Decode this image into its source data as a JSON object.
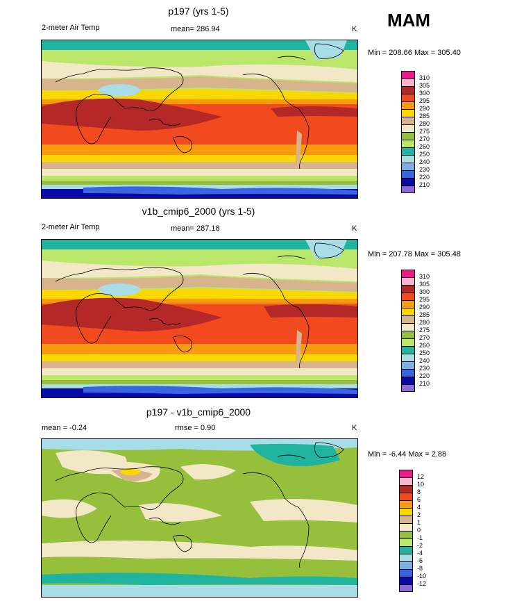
{
  "season": "MAM",
  "panels": [
    {
      "title": "p197 (yrs 1-5)",
      "variable": "2-meter Air Temp",
      "mean": "mean= 286.94",
      "unit": "K",
      "range": "Min = 208.66 Max = 305.40",
      "colorbar": {
        "labels": [
          "310",
          "305",
          "300",
          "295",
          "290",
          "285",
          "280",
          "275",
          "270",
          "260",
          "250",
          "240",
          "230",
          "220",
          "210"
        ],
        "colors": [
          "#f0188c",
          "#f4b6c8",
          "#b42828",
          "#f04a1e",
          "#f89a10",
          "#f8d800",
          "#d8b48c",
          "#f2e8c8",
          "#96c03c",
          "#bae66a",
          "#20b4a0",
          "#a8dce6",
          "#7ab0e6",
          "#3a64e0",
          "#0a0aa8",
          "#8c6ad8"
        ]
      },
      "map_palette": {
        "polar": "#3a64e0",
        "cold": "#a8dce6",
        "cool": "#bae66a",
        "mild": "#f2e8c8",
        "warm": "#f89a10",
        "hot": "#f04a1e",
        "hottest": "#b42828",
        "ocean_mid": "#f8d800",
        "tan": "#d8b48c",
        "green": "#96c03c",
        "teal": "#20b4a0",
        "navy": "#0a0aa8"
      }
    },
    {
      "title": "v1b_cmip6_2000 (yrs 1-5)",
      "variable": "2-meter Air Temp",
      "mean": "mean= 287.18",
      "unit": "K",
      "range": "Min = 207.78 Max = 305.48",
      "colorbar": {
        "labels": [
          "310",
          "305",
          "300",
          "295",
          "290",
          "285",
          "280",
          "275",
          "270",
          "260",
          "250",
          "240",
          "230",
          "220",
          "210"
        ],
        "colors": [
          "#f0188c",
          "#f4b6c8",
          "#b42828",
          "#f04a1e",
          "#f89a10",
          "#f8d800",
          "#d8b48c",
          "#f2e8c8",
          "#96c03c",
          "#bae66a",
          "#20b4a0",
          "#a8dce6",
          "#7ab0e6",
          "#3a64e0",
          "#0a0aa8",
          "#8c6ad8"
        ]
      }
    },
    {
      "title": "p197 - v1b_cmip6_2000",
      "mean": "mean =  -0.24",
      "rmse": "rmse =   0.90",
      "unit": "K",
      "range": "Min =  -6.44 Max =   2.88",
      "colorbar": {
        "labels": [
          "12",
          "10",
          "8",
          "6",
          "4",
          "2",
          "1",
          "0",
          "-1",
          "-2",
          "-4",
          "-6",
          "-8",
          "-10",
          "-12"
        ],
        "colors": [
          "#f0188c",
          "#f4b6c8",
          "#b42828",
          "#f04a1e",
          "#f89a10",
          "#f8d800",
          "#d8b48c",
          "#f2e8c8",
          "#96c03c",
          "#bae66a",
          "#20b4a0",
          "#a8dce6",
          "#7ab0e6",
          "#3a64e0",
          "#0a0aa8",
          "#8c6ad8"
        ]
      }
    }
  ]
}
